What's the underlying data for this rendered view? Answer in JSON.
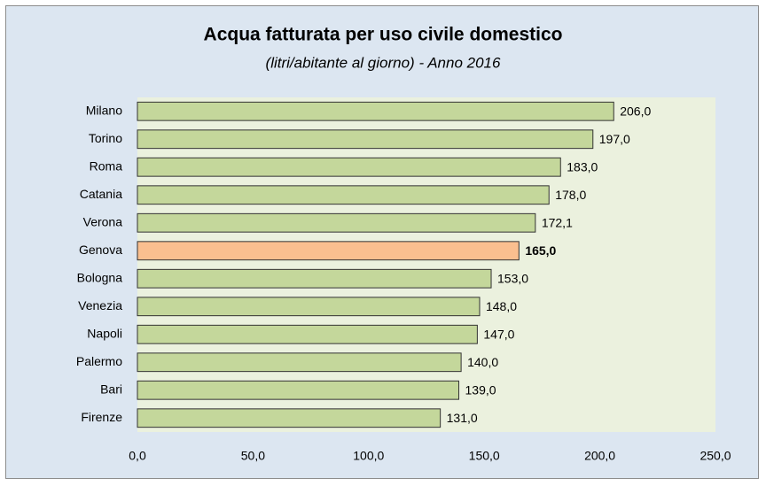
{
  "chart_data": {
    "type": "bar",
    "orientation": "horizontal",
    "title": "Acqua fatturata per uso civile domestico",
    "subtitle": "(litri/abitante al giorno) - Anno 2016",
    "categories": [
      "Milano",
      "Torino",
      "Roma",
      "Catania",
      "Verona",
      "Genova",
      "Bologna",
      "Venezia",
      "Napoli",
      "Palermo",
      "Bari",
      "Firenze"
    ],
    "values": [
      206,
      197,
      183,
      178,
      172.1,
      165,
      153,
      148,
      147,
      140,
      139,
      131
    ],
    "value_labels": [
      "206,0",
      "197,0",
      "183,0",
      "178,0",
      "172,1",
      "165,0",
      "153,0",
      "148,0",
      "147,0",
      "140,0",
      "139,0",
      "131,0"
    ],
    "color": "#c4d79b",
    "highlight": {
      "category": "Genova",
      "color": "#fabf8f"
    },
    "xlim": [
      0,
      250
    ],
    "xticks": [
      {
        "value": 0,
        "label": "0,0"
      },
      {
        "value": 50,
        "label": "50,0"
      },
      {
        "value": 100,
        "label": "100,0"
      },
      {
        "value": 150,
        "label": "150,0"
      },
      {
        "value": 200,
        "label": "200,0"
      },
      {
        "value": 250,
        "label": "250,0"
      }
    ],
    "grid": false
  }
}
